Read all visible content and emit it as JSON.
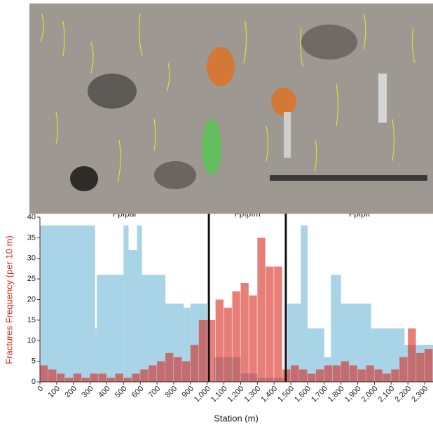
{
  "chart_data": {
    "type": "histogram",
    "ylabel": "Fractures Frequency (per 10 m)",
    "xlabel": "Station (m)",
    "zones": [
      "Fpfpal",
      "Fpfpfm",
      "Fpfpfl"
    ],
    "boundaries": [
      1010,
      1470
    ],
    "xlim": [
      0,
      2350
    ],
    "ylim": [
      0,
      40
    ],
    "yticks": [
      0,
      5,
      10,
      15,
      20,
      25,
      30,
      35,
      40
    ],
    "xticks": [
      0,
      100,
      200,
      300,
      400,
      500,
      600,
      700,
      800,
      900,
      {
        "value": 1000,
        "label": "1,000"
      },
      {
        "value": 1100,
        "label": "1,100"
      },
      {
        "value": 1200,
        "label": "1,200"
      },
      {
        "value": 1300,
        "label": "1,300"
      },
      {
        "value": 1400,
        "label": "1,400"
      },
      {
        "value": 1500,
        "label": "1,500"
      },
      {
        "value": 1600,
        "label": "1,600"
      },
      {
        "value": 1700,
        "label": "1,700"
      },
      {
        "value": 1800,
        "label": "1,800"
      },
      {
        "value": 1900,
        "label": "1,900"
      },
      {
        "value": 2000,
        "label": "2,000"
      },
      {
        "value": 2100,
        "label": "2,100"
      },
      {
        "value": 2200,
        "label": "2,200"
      },
      {
        "value": 2300,
        "label": "2,300"
      }
    ],
    "series": [
      {
        "color": "#a9d3e6",
        "bins": [
          0,
          330,
          340,
          500,
          530,
          580,
          610,
          750,
          860,
          900,
          1000,
          1040,
          1200,
          1300,
          1460,
          1480,
          1560,
          1600,
          1700,
          1740,
          1800,
          1980,
          2180,
          2350
        ],
        "values": [
          38,
          13,
          26,
          38,
          32,
          38,
          26,
          19,
          18,
          19,
          0,
          6,
          2,
          1,
          0,
          19,
          38,
          13,
          6,
          26,
          19,
          13,
          9
        ]
      },
      {
        "color": "#d9281e",
        "bins": [
          0,
          50,
          100,
          150,
          200,
          250,
          300,
          350,
          400,
          450,
          500,
          550,
          600,
          650,
          700,
          750,
          800,
          850,
          900,
          950,
          1000,
          1050,
          1100,
          1150,
          1200,
          1250,
          1300,
          1350,
          1400,
          1450,
          1500,
          1550,
          1600,
          1650,
          1700,
          1750,
          1800,
          1850,
          1900,
          1950,
          2000,
          2050,
          2100,
          2150,
          2200,
          2250,
          2300,
          2350
        ],
        "values": [
          4,
          3,
          2,
          1,
          2,
          1,
          2,
          2,
          1,
          2,
          1,
          2,
          3,
          4,
          5,
          7,
          6,
          5,
          9,
          15,
          15,
          20,
          18,
          22,
          24,
          21,
          35,
          28,
          28,
          3,
          4,
          3,
          2,
          3,
          4,
          4,
          5,
          4,
          3,
          4,
          3,
          2,
          3,
          6,
          13,
          7,
          8
        ]
      }
    ]
  }
}
